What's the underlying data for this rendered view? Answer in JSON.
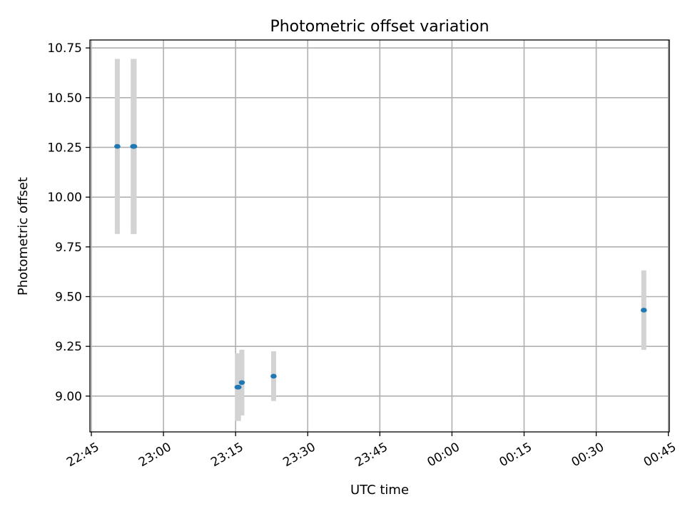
{
  "chart_data": {
    "type": "scatter",
    "title": "Photometric offset variation",
    "xlabel": "UTC time",
    "ylabel": "Photometric offset",
    "grid": true,
    "x_ticks": [
      {
        "label": "22:45",
        "minutes": 0
      },
      {
        "label": "23:00",
        "minutes": 15
      },
      {
        "label": "23:15",
        "minutes": 30
      },
      {
        "label": "23:30",
        "minutes": 45
      },
      {
        "label": "23:45",
        "minutes": 60
      },
      {
        "label": "00:00",
        "minutes": 75
      },
      {
        "label": "00:15",
        "minutes": 90
      },
      {
        "label": "00:30",
        "minutes": 105
      },
      {
        "label": "00:45",
        "minutes": 120
      }
    ],
    "y_ticks": [
      {
        "label": "9.00",
        "value": 9.0
      },
      {
        "label": "9.25",
        "value": 9.25
      },
      {
        "label": "9.50",
        "value": 9.5
      },
      {
        "label": "9.75",
        "value": 9.75
      },
      {
        "label": "10.00",
        "value": 10.0
      },
      {
        "label": "10.25",
        "value": 10.25
      },
      {
        "label": "10.50",
        "value": 10.5
      },
      {
        "label": "10.75",
        "value": 10.75
      }
    ],
    "xlim_minutes": [
      -0.3,
      120.2
    ],
    "ylim": [
      8.82,
      10.79
    ],
    "colors": {
      "marker": "#1f77b4",
      "errorbar": "#d3d3d3",
      "grid": "#b0b0b0"
    },
    "points": [
      {
        "time": "22:50:24",
        "minutes": 5.4,
        "y": 10.255,
        "yerr": 0.44
      },
      {
        "time": "22:53:42",
        "minutes": 8.7,
        "y": 10.255,
        "yerr": 0.44
      },
      {
        "time": "22:53:54",
        "minutes": 8.9,
        "y": 10.255,
        "yerr": 0.44
      },
      {
        "time": "23:15:24",
        "minutes": 30.4,
        "y": 9.045,
        "yerr": 0.17
      },
      {
        "time": "23:15:36",
        "minutes": 30.6,
        "y": 9.045,
        "yerr": 0.17
      },
      {
        "time": "23:16:18",
        "minutes": 31.3,
        "y": 9.068,
        "yerr": 0.165
      },
      {
        "time": "23:22:54",
        "minutes": 37.9,
        "y": 9.1,
        "yerr": 0.125
      },
      {
        "time": "00:39:54",
        "minutes": 114.9,
        "y": 9.432,
        "yerr": 0.2
      }
    ]
  }
}
